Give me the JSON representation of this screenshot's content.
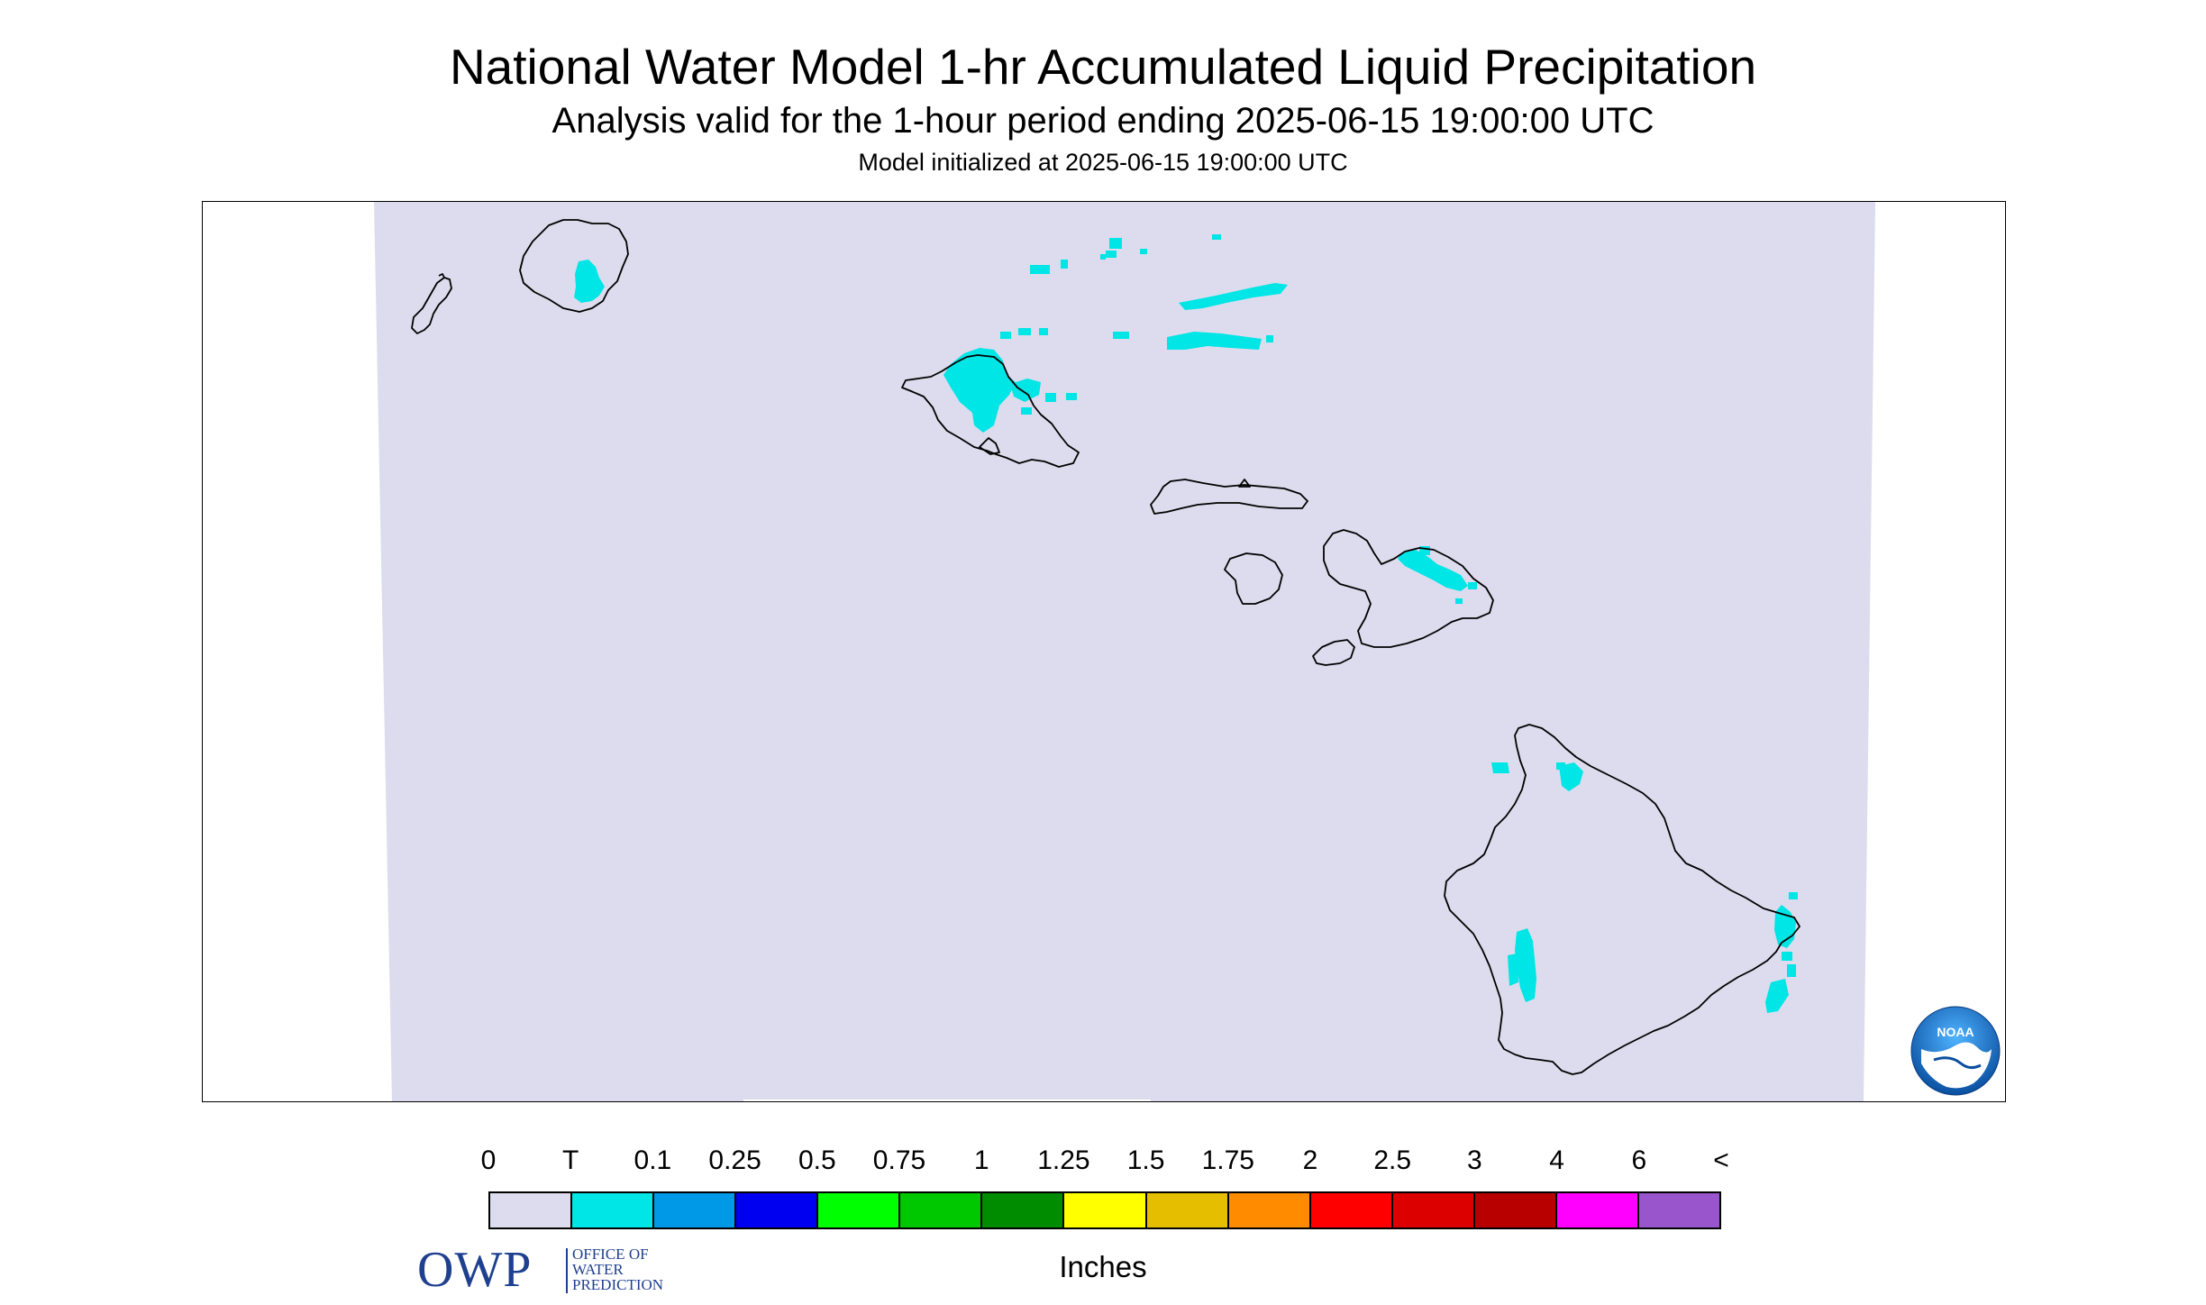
{
  "header": {
    "title": "National Water Model 1-hr Accumulated Liquid Precipitation",
    "subtitle": "Analysis valid for the 1-hour period ending 2025-06-15 19:00:00 UTC",
    "init": "Model initialized at 2025-06-15 19:00:00 UTC"
  },
  "map": {
    "domain_color": "#dcdcee",
    "coast_color": "#000000",
    "precip_color": "#00e5e5",
    "islands": [
      "Niihau",
      "Kauai",
      "Oahu",
      "Molokai",
      "Lanai",
      "Maui",
      "Kahoolawe",
      "Hawaii"
    ]
  },
  "logos": {
    "owp_big": "OWP",
    "owp_line1": "OFFICE OF",
    "owp_line2": "WATER",
    "owp_line3": "PREDICTION",
    "noaa": "NOAA"
  },
  "legend": {
    "labels": [
      "0",
      "T",
      "0.1",
      "0.25",
      "0.5",
      "0.75",
      "1",
      "1.25",
      "1.5",
      "1.75",
      "2",
      "2.5",
      "3",
      "4",
      "6",
      "<"
    ],
    "colors": [
      "#dcdcee",
      "#00e5e5",
      "#0099e8",
      "#0000f0",
      "#00ff00",
      "#00c800",
      "#008c00",
      "#ffff00",
      "#e6be00",
      "#ff8c00",
      "#ff0000",
      "#dc0000",
      "#b90000",
      "#ff00ff",
      "#9955cc"
    ],
    "units": "Inches"
  }
}
